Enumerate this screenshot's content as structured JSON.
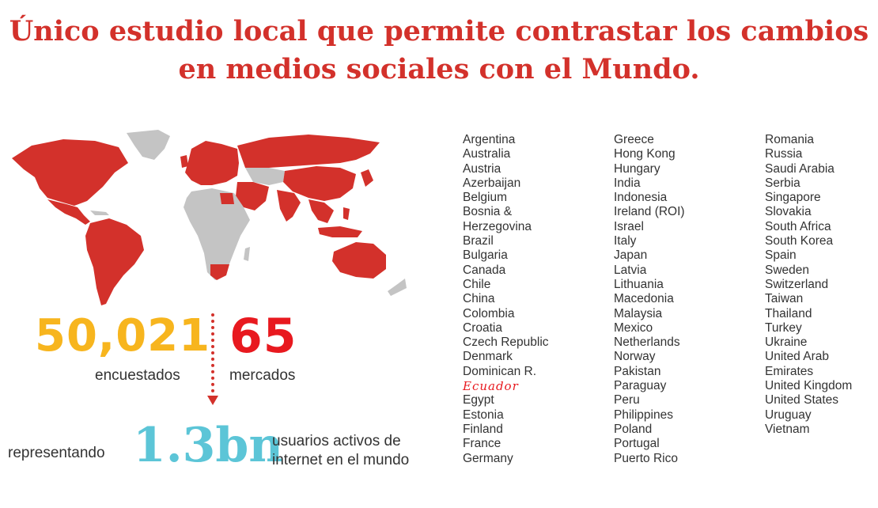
{
  "title": {
    "line1": "Único estudio local que permite contrastar los cambios",
    "line2": "en medios sociales con el Mundo."
  },
  "colors": {
    "brand_red": "#d3312b",
    "highlight_red": "#e8191f",
    "yellow": "#f7b51e",
    "cyan": "#5cc5d7",
    "map_gray": "#c4c4c4"
  },
  "stats": {
    "encuestados_number": "50,021",
    "encuestados_label": "encuestados",
    "mercados_number": "65",
    "mercados_label": "mercados",
    "representando": "representando",
    "users_number": "1.3bn",
    "users_line1": "usuarios activos de",
    "users_line2": "internet en el  mundo"
  },
  "countries": {
    "column1": [
      "Argentina",
      "Australia",
      "Austria",
      "Azerbaijan",
      "Belgium",
      "Bosnia &",
      "Herzegovina",
      "Brazil",
      "Bulgaria",
      "Canada",
      "Chile",
      "China",
      "Colombia",
      "Croatia",
      "Czech Republic",
      "Denmark",
      "Dominican R.",
      "Ecuador",
      "Egypt",
      "Estonia",
      "Finland",
      "France",
      "Germany"
    ],
    "column2": [
      "Greece",
      "Hong Kong",
      "Hungary",
      "India",
      "Indonesia",
      "Ireland (ROI)",
      "Israel",
      "Italy",
      "Japan",
      "Latvia",
      "Lithuania",
      "Macedonia",
      "Malaysia",
      "Mexico",
      "Netherlands",
      "Norway",
      "Pakistan",
      "Paraguay",
      "Peru",
      "Philippines",
      "Poland",
      "Portugal",
      "Puerto Rico"
    ],
    "column3": [
      "Romania",
      "Russia",
      "Saudi Arabia",
      "Serbia",
      "Singapore",
      "Slovakia",
      "South Africa",
      "South Korea",
      "Spain",
      "Sweden",
      "Switzerland",
      "Taiwan",
      "Thailand",
      "Turkey",
      "Ukraine",
      "United Arab",
      "Emirates",
      "United Kingdom",
      "United States",
      "Uruguay",
      "Vietnam"
    ]
  }
}
